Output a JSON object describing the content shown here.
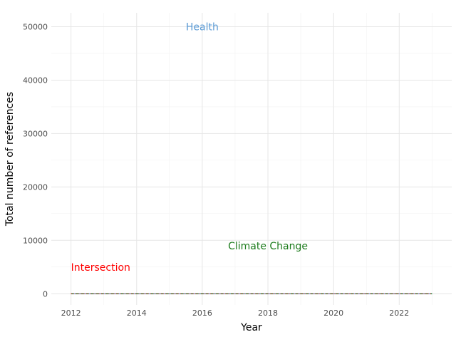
{
  "chart_data": {
    "type": "line",
    "xlabel": "Year",
    "ylabel": "Total number of references",
    "xlim": [
      2011.4,
      2023.6
    ],
    "ylim": [
      -2100,
      52600
    ],
    "x_ticks": [
      "2012",
      "2014",
      "2016",
      "2018",
      "2020",
      "2022"
    ],
    "y_ticks": [
      "0",
      "10000",
      "20000",
      "30000",
      "40000",
      "50000"
    ],
    "grid": true,
    "x": [
      2012,
      2013,
      2014,
      2015,
      2016,
      2017,
      2018,
      2019,
      2020,
      2021,
      2022,
      2023
    ],
    "series": [
      {
        "values": [
          0,
          0,
          0,
          0,
          0,
          0,
          0,
          0,
          0,
          0,
          0,
          0
        ],
        "color": "#5b9bd5"
      },
      {
        "values": [
          0,
          0,
          0,
          0,
          0,
          0,
          0,
          0,
          0,
          0,
          0,
          0
        ],
        "color": "#1a7a1a"
      },
      {
        "values": [
          0,
          0,
          0,
          0,
          0,
          0,
          0,
          0,
          0,
          0,
          0,
          0
        ],
        "color": "#e8191a"
      }
    ],
    "annotations": [
      {
        "text": "Health",
        "x": 2016,
        "y": 50000,
        "color": "#5b9bd5",
        "anchor": "middle"
      },
      {
        "text": "Climate Change",
        "x": 2018,
        "y": 9000,
        "color": "#1a7a1a",
        "anchor": "middle"
      },
      {
        "text": "Intersection",
        "x": 2012,
        "y": 5000,
        "color": "#ff0000",
        "anchor": "start"
      }
    ]
  }
}
